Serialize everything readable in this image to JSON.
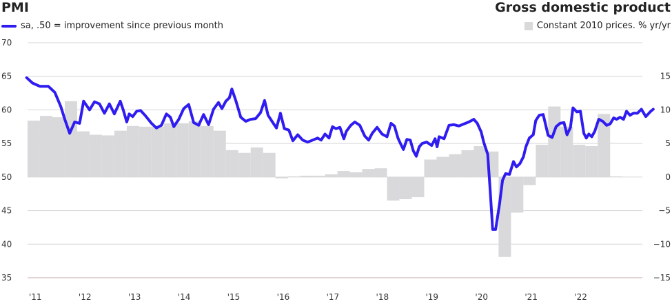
{
  "chart_data": {
    "type": "bar+line",
    "left_title": "PMI",
    "right_title": "Gross domestic product",
    "left_legend": "sa, .50 = improvement since previous month",
    "right_legend": "Constant 2010 prices. % yr/yr",
    "left_axis": {
      "min": 35,
      "max": 70,
      "ticks": [
        "70",
        "65",
        "60",
        "55",
        "50",
        "45",
        "40",
        "35"
      ]
    },
    "right_axis": {
      "min": -15,
      "max": 20,
      "ticks": [
        "15",
        "10",
        "5",
        "0",
        "−5",
        "−10",
        "−15"
      ]
    },
    "x_labels": [
      "'11",
      "'12",
      "'13",
      "'14",
      "'15",
      "'16",
      "'17",
      "'18",
      "'19",
      "'20",
      "'21",
      "'22"
    ],
    "x_range": [
      2011.0,
      2023.4
    ],
    "colors": {
      "line": "#2f1cf0",
      "bars": "#d9d9db",
      "grid": "#d6d6d6",
      "zero": "#c8a9a9"
    },
    "gdp_quarterly": [
      {
        "t": 2011.0,
        "v": 8.4
      },
      {
        "t": 2011.25,
        "v": 9.1
      },
      {
        "t": 2011.5,
        "v": 8.9
      },
      {
        "t": 2011.75,
        "v": 11.3
      },
      {
        "t": 2012.0,
        "v": 6.8
      },
      {
        "t": 2012.25,
        "v": 6.3
      },
      {
        "t": 2012.5,
        "v": 6.2
      },
      {
        "t": 2012.75,
        "v": 6.9
      },
      {
        "t": 2013.0,
        "v": 7.6
      },
      {
        "t": 2013.25,
        "v": 7.5
      },
      {
        "t": 2013.5,
        "v": 7.5
      },
      {
        "t": 2013.75,
        "v": 8.0
      },
      {
        "t": 2014.0,
        "v": 8.0
      },
      {
        "t": 2014.25,
        "v": 8.3
      },
      {
        "t": 2014.5,
        "v": 7.6
      },
      {
        "t": 2014.75,
        "v": 6.9
      },
      {
        "t": 2015.0,
        "v": 4.0
      },
      {
        "t": 2015.25,
        "v": 3.6
      },
      {
        "t": 2015.5,
        "v": 4.4
      },
      {
        "t": 2015.75,
        "v": 3.6
      },
      {
        "t": 2016.0,
        "v": -0.2
      },
      {
        "t": 2016.25,
        "v": 0.1
      },
      {
        "t": 2016.5,
        "v": 0.2
      },
      {
        "t": 2016.75,
        "v": 0.2
      },
      {
        "t": 2017.0,
        "v": 0.4
      },
      {
        "t": 2017.25,
        "v": 0.9
      },
      {
        "t": 2017.5,
        "v": 0.7
      },
      {
        "t": 2017.75,
        "v": 1.2
      },
      {
        "t": 2018.0,
        "v": 1.3
      },
      {
        "t": 2018.25,
        "v": -3.5
      },
      {
        "t": 2018.5,
        "v": -3.3
      },
      {
        "t": 2018.75,
        "v": -3.0
      },
      {
        "t": 2019.0,
        "v": 2.6
      },
      {
        "t": 2019.25,
        "v": 3.0
      },
      {
        "t": 2019.5,
        "v": 3.4
      },
      {
        "t": 2019.75,
        "v": 4.0
      },
      {
        "t": 2020.0,
        "v": 4.6
      },
      {
        "t": 2020.25,
        "v": 3.8
      },
      {
        "t": 2020.5,
        "v": -11.9
      },
      {
        "t": 2020.75,
        "v": -5.3
      },
      {
        "t": 2021.0,
        "v": -1.2
      },
      {
        "t": 2021.25,
        "v": 4.8
      },
      {
        "t": 2021.5,
        "v": 10.5
      },
      {
        "t": 2021.75,
        "v": 7.5
      },
      {
        "t": 2022.0,
        "v": 4.8
      },
      {
        "t": 2022.25,
        "v": 4.6
      },
      {
        "t": 2022.5,
        "v": 9.4
      },
      {
        "t": 2022.75,
        "v": 0.1
      }
    ],
    "pmi_monthly": [
      {
        "t": 2010.98,
        "v": 64.8
      },
      {
        "t": 2011.1,
        "v": 64.0
      },
      {
        "t": 2011.25,
        "v": 63.5
      },
      {
        "t": 2011.42,
        "v": 63.5
      },
      {
        "t": 2011.55,
        "v": 62.6
      },
      {
        "t": 2011.67,
        "v": 60.5
      },
      {
        "t": 2011.75,
        "v": 58.6
      },
      {
        "t": 2011.85,
        "v": 56.5
      },
      {
        "t": 2011.95,
        "v": 58.2
      },
      {
        "t": 2012.05,
        "v": 58.0
      },
      {
        "t": 2012.13,
        "v": 61.3
      },
      {
        "t": 2012.25,
        "v": 60.0
      },
      {
        "t": 2012.35,
        "v": 61.2
      },
      {
        "t": 2012.45,
        "v": 60.9
      },
      {
        "t": 2012.55,
        "v": 59.5
      },
      {
        "t": 2012.65,
        "v": 60.9
      },
      {
        "t": 2012.75,
        "v": 59.4
      },
      {
        "t": 2012.87,
        "v": 61.3
      },
      {
        "t": 2012.93,
        "v": 60.0
      },
      {
        "t": 2013.0,
        "v": 58.2
      },
      {
        "t": 2013.05,
        "v": 59.4
      },
      {
        "t": 2013.12,
        "v": 59.0
      },
      {
        "t": 2013.2,
        "v": 59.8
      },
      {
        "t": 2013.28,
        "v": 59.9
      },
      {
        "t": 2013.38,
        "v": 59.1
      },
      {
        "t": 2013.5,
        "v": 58.0
      },
      {
        "t": 2013.6,
        "v": 57.3
      },
      {
        "t": 2013.7,
        "v": 57.7
      },
      {
        "t": 2013.8,
        "v": 59.4
      },
      {
        "t": 2013.88,
        "v": 58.9
      },
      {
        "t": 2013.95,
        "v": 57.5
      },
      {
        "t": 2014.05,
        "v": 58.6
      },
      {
        "t": 2014.15,
        "v": 60.2
      },
      {
        "t": 2014.25,
        "v": 60.8
      },
      {
        "t": 2014.35,
        "v": 58.1
      },
      {
        "t": 2014.45,
        "v": 57.7
      },
      {
        "t": 2014.55,
        "v": 59.3
      },
      {
        "t": 2014.65,
        "v": 57.8
      },
      {
        "t": 2014.75,
        "v": 60.1
      },
      {
        "t": 2014.85,
        "v": 61.1
      },
      {
        "t": 2014.92,
        "v": 60.2
      },
      {
        "t": 2015.0,
        "v": 61.3
      },
      {
        "t": 2015.07,
        "v": 61.8
      },
      {
        "t": 2015.12,
        "v": 63.1
      },
      {
        "t": 2015.2,
        "v": 61.4
      },
      {
        "t": 2015.3,
        "v": 58.9
      },
      {
        "t": 2015.4,
        "v": 58.3
      },
      {
        "t": 2015.5,
        "v": 58.6
      },
      {
        "t": 2015.6,
        "v": 58.7
      },
      {
        "t": 2015.7,
        "v": 59.6
      },
      {
        "t": 2015.78,
        "v": 61.4
      },
      {
        "t": 2015.85,
        "v": 59.2
      },
      {
        "t": 2015.93,
        "v": 58.3
      },
      {
        "t": 2016.02,
        "v": 57.3
      },
      {
        "t": 2016.1,
        "v": 59.5
      },
      {
        "t": 2016.18,
        "v": 57.2
      },
      {
        "t": 2016.27,
        "v": 57.0
      },
      {
        "t": 2016.35,
        "v": 55.4
      },
      {
        "t": 2016.45,
        "v": 56.3
      },
      {
        "t": 2016.55,
        "v": 55.5
      },
      {
        "t": 2016.65,
        "v": 55.2
      },
      {
        "t": 2016.75,
        "v": 55.5
      },
      {
        "t": 2016.85,
        "v": 55.8
      },
      {
        "t": 2016.92,
        "v": 55.5
      },
      {
        "t": 2017.0,
        "v": 56.4
      },
      {
        "t": 2017.08,
        "v": 55.8
      },
      {
        "t": 2017.15,
        "v": 57.5
      },
      {
        "t": 2017.22,
        "v": 57.2
      },
      {
        "t": 2017.3,
        "v": 57.4
      },
      {
        "t": 2017.38,
        "v": 55.7
      },
      {
        "t": 2017.43,
        "v": 56.8
      },
      {
        "t": 2017.52,
        "v": 57.7
      },
      {
        "t": 2017.6,
        "v": 58.2
      },
      {
        "t": 2017.7,
        "v": 57.7
      },
      {
        "t": 2017.8,
        "v": 56.1
      },
      {
        "t": 2017.88,
        "v": 55.5
      },
      {
        "t": 2017.95,
        "v": 56.5
      },
      {
        "t": 2018.05,
        "v": 57.4
      },
      {
        "t": 2018.15,
        "v": 56.4
      },
      {
        "t": 2018.25,
        "v": 56.0
      },
      {
        "t": 2018.33,
        "v": 58.0
      },
      {
        "t": 2018.4,
        "v": 57.6
      },
      {
        "t": 2018.47,
        "v": 55.8
      },
      {
        "t": 2018.52,
        "v": 55.0
      },
      {
        "t": 2018.58,
        "v": 54.1
      },
      {
        "t": 2018.65,
        "v": 55.6
      },
      {
        "t": 2018.72,
        "v": 55.5
      },
      {
        "t": 2018.78,
        "v": 53.9
      },
      {
        "t": 2018.84,
        "v": 53.1
      },
      {
        "t": 2018.9,
        "v": 54.5
      },
      {
        "t": 2018.96,
        "v": 55.0
      },
      {
        "t": 2019.05,
        "v": 55.2
      },
      {
        "t": 2019.15,
        "v": 54.7
      },
      {
        "t": 2019.22,
        "v": 55.7
      },
      {
        "t": 2019.26,
        "v": 54.5
      },
      {
        "t": 2019.3,
        "v": 56.0
      },
      {
        "t": 2019.4,
        "v": 55.7
      },
      {
        "t": 2019.5,
        "v": 57.7
      },
      {
        "t": 2019.6,
        "v": 57.8
      },
      {
        "t": 2019.7,
        "v": 57.6
      },
      {
        "t": 2019.8,
        "v": 57.9
      },
      {
        "t": 2019.9,
        "v": 58.2
      },
      {
        "t": 2020.0,
        "v": 58.6
      },
      {
        "t": 2020.07,
        "v": 58.0
      },
      {
        "t": 2020.15,
        "v": 56.7
      },
      {
        "t": 2020.2,
        "v": 55.2
      },
      {
        "t": 2020.28,
        "v": 53.4
      },
      {
        "t": 2020.33,
        "v": 48.0
      },
      {
        "t": 2020.38,
        "v": 42.2
      },
      {
        "t": 2020.44,
        "v": 42.2
      },
      {
        "t": 2020.52,
        "v": 46.0
      },
      {
        "t": 2020.58,
        "v": 49.5
      },
      {
        "t": 2020.64,
        "v": 50.5
      },
      {
        "t": 2020.72,
        "v": 50.4
      },
      {
        "t": 2020.8,
        "v": 52.3
      },
      {
        "t": 2020.86,
        "v": 51.5
      },
      {
        "t": 2020.93,
        "v": 52.0
      },
      {
        "t": 2021.0,
        "v": 53.0
      },
      {
        "t": 2021.05,
        "v": 54.5
      },
      {
        "t": 2021.12,
        "v": 55.8
      },
      {
        "t": 2021.2,
        "v": 56.3
      },
      {
        "t": 2021.25,
        "v": 58.4
      },
      {
        "t": 2021.32,
        "v": 59.2
      },
      {
        "t": 2021.4,
        "v": 59.3
      },
      {
        "t": 2021.5,
        "v": 56.2
      },
      {
        "t": 2021.58,
        "v": 55.9
      },
      {
        "t": 2021.66,
        "v": 57.5
      },
      {
        "t": 2021.74,
        "v": 58.0
      },
      {
        "t": 2021.82,
        "v": 58.1
      },
      {
        "t": 2021.88,
        "v": 56.3
      },
      {
        "t": 2021.95,
        "v": 57.4
      },
      {
        "t": 2022.0,
        "v": 60.3
      },
      {
        "t": 2022.08,
        "v": 59.7
      },
      {
        "t": 2022.15,
        "v": 59.8
      },
      {
        "t": 2022.22,
        "v": 56.5
      },
      {
        "t": 2022.27,
        "v": 55.8
      },
      {
        "t": 2022.32,
        "v": 56.4
      },
      {
        "t": 2022.38,
        "v": 56.0
      },
      {
        "t": 2022.44,
        "v": 56.8
      },
      {
        "t": 2022.52,
        "v": 58.6
      },
      {
        "t": 2022.6,
        "v": 58.3
      },
      {
        "t": 2022.68,
        "v": 57.7
      },
      {
        "t": 2022.75,
        "v": 57.9
      },
      {
        "t": 2022.82,
        "v": 58.8
      },
      {
        "t": 2022.88,
        "v": 58.6
      },
      {
        "t": 2022.95,
        "v": 58.9
      },
      {
        "t": 2023.02,
        "v": 58.6
      },
      {
        "t": 2023.08,
        "v": 59.8
      },
      {
        "t": 2023.15,
        "v": 59.2
      },
      {
        "t": 2023.22,
        "v": 59.5
      },
      {
        "t": 2023.3,
        "v": 59.5
      },
      {
        "t": 2023.38,
        "v": 60.1
      },
      {
        "t": 2023.47,
        "v": 59.0
      },
      {
        "t": 2023.57,
        "v": 59.8
      },
      {
        "t": 2023.62,
        "v": 60.1
      }
    ]
  }
}
